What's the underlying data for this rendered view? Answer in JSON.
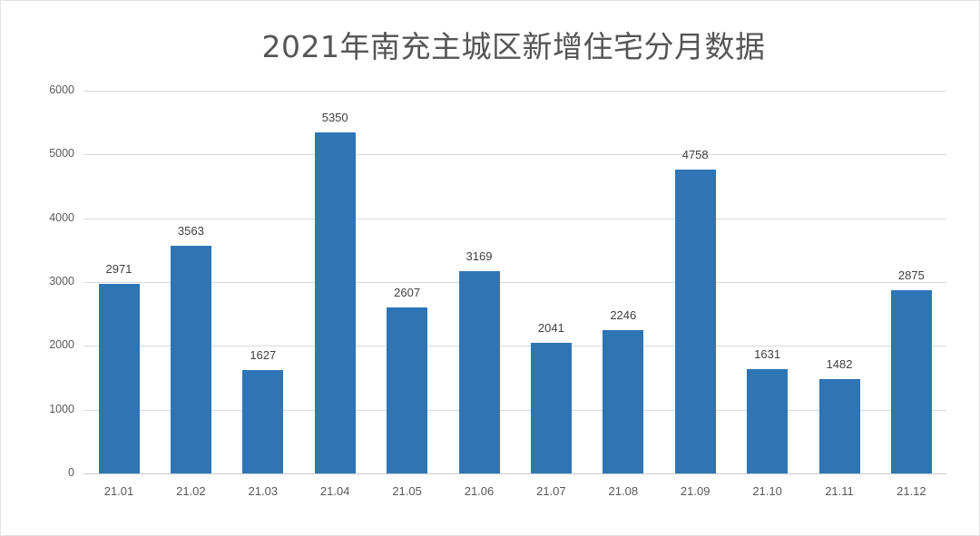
{
  "chart_data": {
    "type": "bar",
    "title": "2021年南充主城区新增住宅分月数据",
    "xlabel": "",
    "ylabel": "",
    "categories": [
      "21.01",
      "21.02",
      "21.03",
      "21.04",
      "21.05",
      "21.06",
      "21.07",
      "21.08",
      "21.09",
      "21.10",
      "21.11",
      "21.12"
    ],
    "values": [
      2971,
      3563,
      1627,
      5350,
      2607,
      3169,
      2041,
      2246,
      4758,
      1631,
      1482,
      2875
    ],
    "data_labels": [
      "2971",
      "3563",
      "1627",
      "5350",
      "2607",
      "3169",
      "2041",
      "2246",
      "4758",
      "1631",
      "1482",
      "2875"
    ],
    "ylim": [
      0,
      6000
    ],
    "yticks": [
      "0",
      "1000",
      "2000",
      "3000",
      "4000",
      "5000",
      "6000"
    ],
    "grid": true,
    "legend": "none",
    "bar_color": "#2e75b6"
  }
}
